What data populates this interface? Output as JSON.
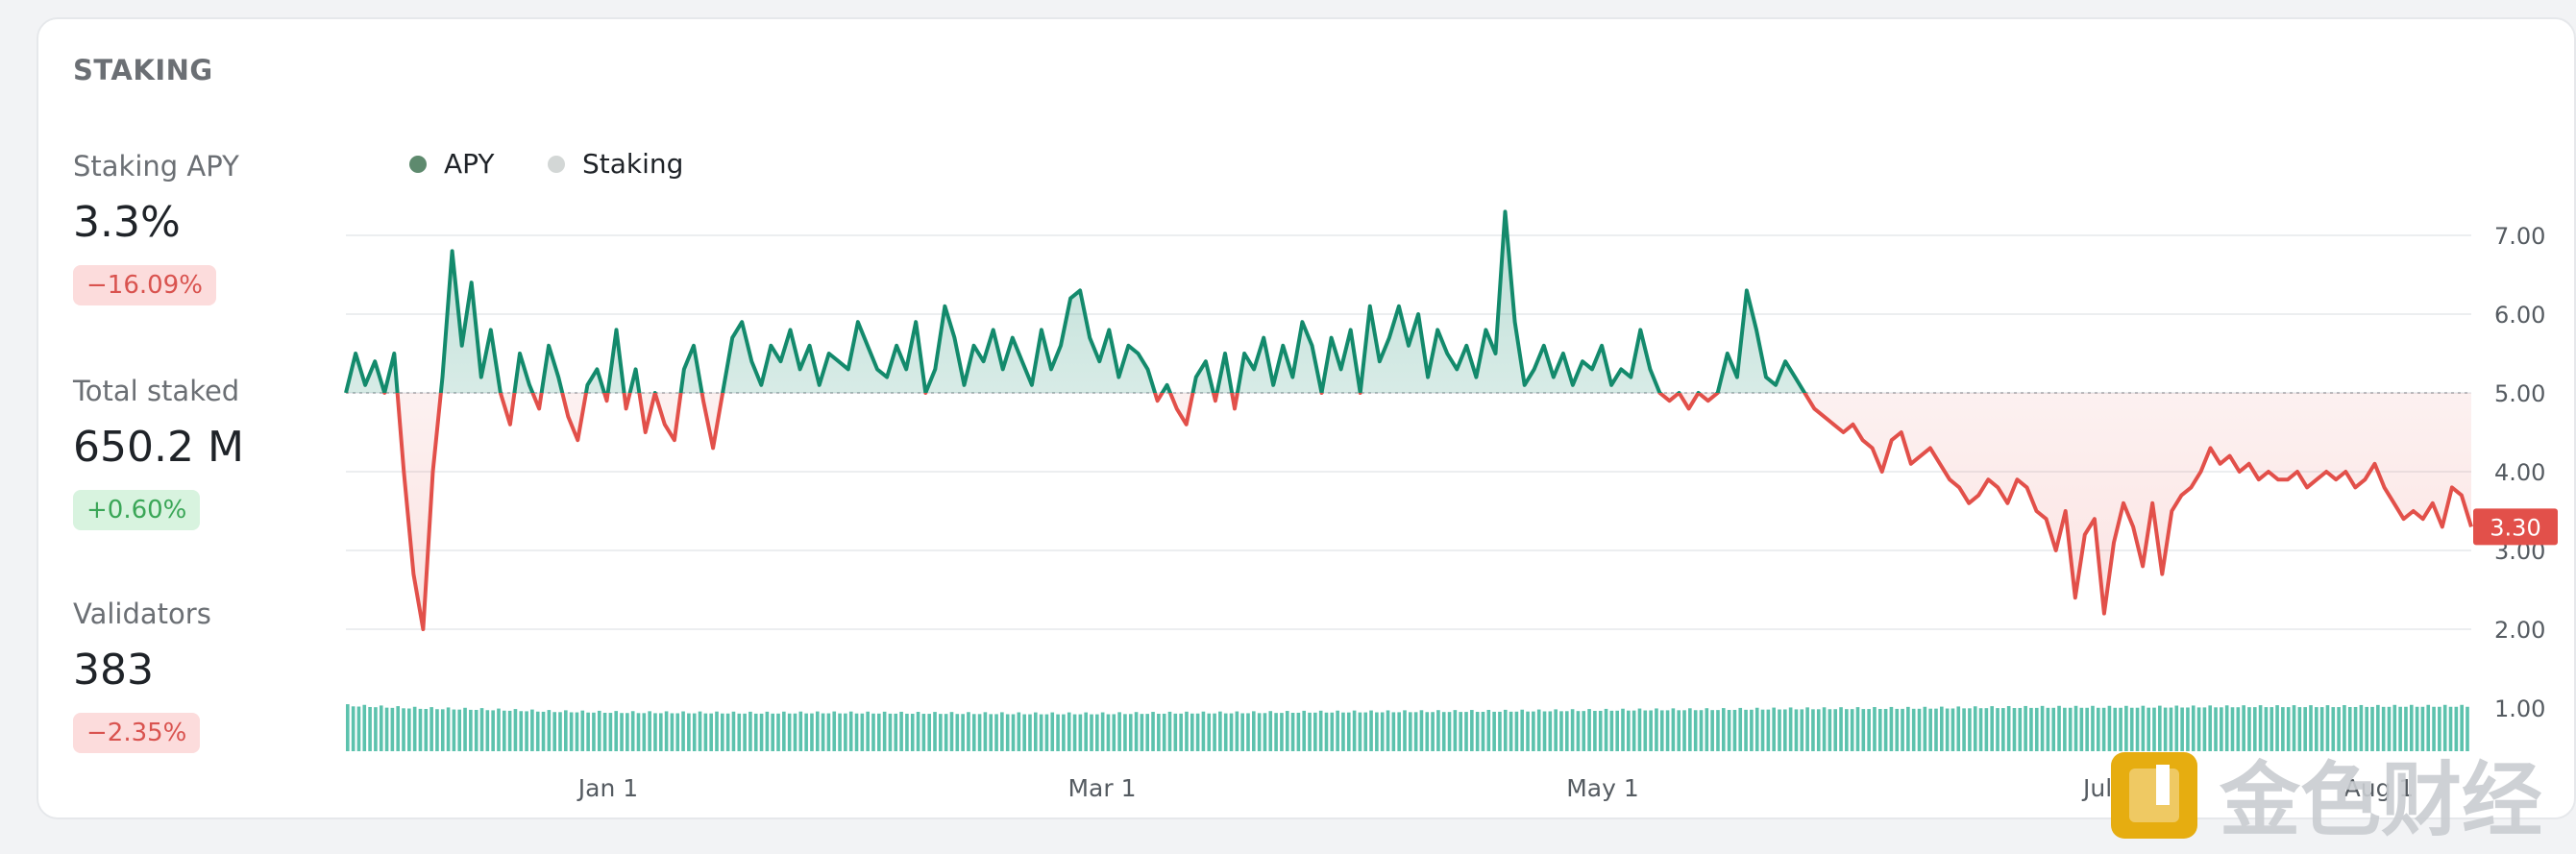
{
  "panel": {
    "title": "STAKING",
    "stats": [
      {
        "label": "Staking APY",
        "value": "3.3%",
        "change": "−16.09%",
        "trend": "negative"
      },
      {
        "label": "Total staked",
        "value": "650.2 M",
        "change": "+0.60%",
        "trend": "positive"
      },
      {
        "label": "Validators",
        "value": "383",
        "change": "−2.35%",
        "trend": "negative"
      }
    ]
  },
  "colors": {
    "apy_above": "#138a6c",
    "apy_below": "#e2504a",
    "staking_bar": "#5cc2ad",
    "legend_apy": "#5e8a6e",
    "legend_staking": "#d3d7d6",
    "baseline": "#b9bcc0",
    "grid": "#eceef0",
    "last_value_bg": "#e2504a"
  },
  "watermark": {
    "text": "金色财经",
    "icon": "jinse-logo-icon"
  },
  "chart_data": {
    "type": "line",
    "legend": [
      "APY",
      "Staking"
    ],
    "legend_position": "top-left",
    "y_ticks": [
      "1.00",
      "2.00",
      "3.00",
      "4.00",
      "5.00",
      "6.00",
      "7.00"
    ],
    "ylim": [
      0.5,
      7.3
    ],
    "x_ticks": [
      "Jan 1",
      "Mar 1",
      "May 1",
      "Jul 1",
      "Aug 1"
    ],
    "baseline": 5.0,
    "last_value": "3.30",
    "grid": true,
    "series": [
      {
        "name": "APY",
        "type": "line",
        "values": [
          5.0,
          5.5,
          5.1,
          5.4,
          5.0,
          5.5,
          4.0,
          2.7,
          2.0,
          4.0,
          5.2,
          6.8,
          5.6,
          6.4,
          5.2,
          5.8,
          5.0,
          4.6,
          5.5,
          5.1,
          4.8,
          5.6,
          5.2,
          4.7,
          4.4,
          5.1,
          5.3,
          4.9,
          5.8,
          4.8,
          5.3,
          4.5,
          5.0,
          4.6,
          4.4,
          5.3,
          5.6,
          4.9,
          4.3,
          5.0,
          5.7,
          5.9,
          5.4,
          5.1,
          5.6,
          5.4,
          5.8,
          5.3,
          5.6,
          5.1,
          5.5,
          5.4,
          5.3,
          5.9,
          5.6,
          5.3,
          5.2,
          5.6,
          5.3,
          5.9,
          5.0,
          5.3,
          6.1,
          5.7,
          5.1,
          5.6,
          5.4,
          5.8,
          5.3,
          5.7,
          5.4,
          5.1,
          5.8,
          5.3,
          5.6,
          6.2,
          6.3,
          5.7,
          5.4,
          5.8,
          5.2,
          5.6,
          5.5,
          5.3,
          4.9,
          5.1,
          4.8,
          4.6,
          5.2,
          5.4,
          4.9,
          5.5,
          4.8,
          5.5,
          5.3,
          5.7,
          5.1,
          5.6,
          5.2,
          5.9,
          5.6,
          5.0,
          5.7,
          5.3,
          5.8,
          5.0,
          6.1,
          5.4,
          5.7,
          6.1,
          5.6,
          6.0,
          5.2,
          5.8,
          5.5,
          5.3,
          5.6,
          5.2,
          5.8,
          5.5,
          7.3,
          5.9,
          5.1,
          5.3,
          5.6,
          5.2,
          5.5,
          5.1,
          5.4,
          5.3,
          5.6,
          5.1,
          5.3,
          5.2,
          5.8,
          5.3,
          5.0,
          4.9,
          5.0,
          4.8,
          5.0,
          4.9,
          5.0,
          5.5,
          5.2,
          6.3,
          5.8,
          5.2,
          5.1,
          5.4,
          5.2,
          5.0,
          4.8,
          4.7,
          4.6,
          4.5,
          4.6,
          4.4,
          4.3,
          4.0,
          4.4,
          4.5,
          4.1,
          4.2,
          4.3,
          4.1,
          3.9,
          3.8,
          3.6,
          3.7,
          3.9,
          3.8,
          3.6,
          3.9,
          3.8,
          3.5,
          3.4,
          3.0,
          3.5,
          2.4,
          3.2,
          3.4,
          2.2,
          3.1,
          3.6,
          3.3,
          2.8,
          3.6,
          2.7,
          3.5,
          3.7,
          3.8,
          4.0,
          4.3,
          4.1,
          4.2,
          4.0,
          4.1,
          3.9,
          4.0,
          3.9,
          3.9,
          4.0,
          3.8,
          3.9,
          4.0,
          3.9,
          4.0,
          3.8,
          3.9,
          4.1,
          3.8,
          3.6,
          3.4,
          3.5,
          3.4,
          3.6,
          3.3,
          3.8,
          3.7,
          3.3
        ]
      },
      {
        "name": "Staking",
        "type": "bar",
        "unit": "relative",
        "values": [
          1.38,
          1.3,
          1.26,
          1.2,
          1.17,
          1.16,
          1.15,
          1.16,
          1.15,
          1.14,
          1.13,
          1.13,
          1.15,
          1.16,
          1.18,
          1.19,
          1.2,
          1.21,
          1.23,
          1.25,
          1.26,
          1.28,
          1.29,
          1.3,
          1.32,
          1.33,
          1.33,
          1.34,
          1.35,
          1.35,
          1.36,
          1.36
        ]
      }
    ]
  }
}
